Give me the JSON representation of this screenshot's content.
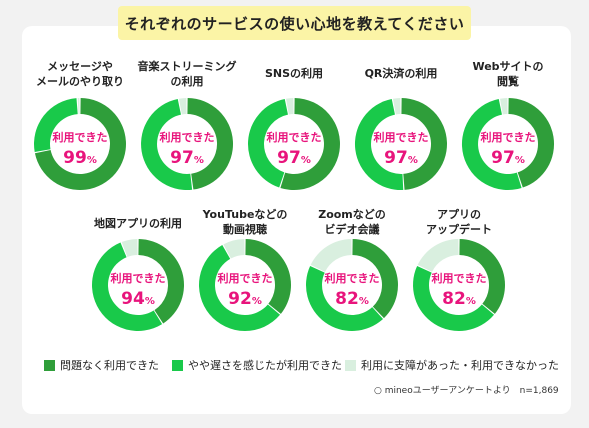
{
  "title": "それぞれのサービスの使い心地を教えてください",
  "center_label": "利用できた",
  "percent_unit": "%",
  "colors": {
    "no_problem": "#2f9e3a",
    "somewhat_slow": "#19c94a",
    "had_issues": "#d9efdf",
    "center_text": "#e8147c"
  },
  "legend": [
    {
      "key": "no_problem",
      "label": "問題なく利用できた"
    },
    {
      "key": "somewhat_slow",
      "label": "やや遅さを感じたが利用できた"
    },
    {
      "key": "had_issues",
      "label": "利用に支障があった・利用できなかった"
    }
  ],
  "source": "○ mineoユーザーアンケートより　n=1,869",
  "chart_data": {
    "type": "pie",
    "variant": "donut",
    "series_names": [
      "問題なく利用できた",
      "やや遅さを感じたが利用できた",
      "利用に支障があった・利用できなかった"
    ],
    "services": [
      {
        "label": [
          "メッセージや",
          "メールのやり取り"
        ],
        "usable_pct": 99,
        "values": [
          72,
          27,
          1
        ]
      },
      {
        "label": [
          "音楽ストリーミング",
          "の利用"
        ],
        "usable_pct": 97,
        "values": [
          48,
          49,
          3
        ]
      },
      {
        "label": [
          "SNSの利用"
        ],
        "usable_pct": 97,
        "values": [
          55,
          42,
          3
        ]
      },
      {
        "label": [
          "QR決済の利用"
        ],
        "usable_pct": 97,
        "values": [
          49,
          48,
          3
        ]
      },
      {
        "label": [
          "Webサイトの",
          "閲覧"
        ],
        "usable_pct": 97,
        "values": [
          45,
          52,
          3
        ]
      },
      {
        "label": [
          "地図アプリの利用"
        ],
        "usable_pct": 94,
        "values": [
          41,
          53,
          6
        ]
      },
      {
        "label": [
          "YouTubeなどの",
          "動画視聴"
        ],
        "usable_pct": 92,
        "values": [
          36,
          56,
          8
        ]
      },
      {
        "label": [
          "Zoomなどの",
          "ビデオ会議"
        ],
        "usable_pct": 82,
        "values": [
          38,
          44,
          18
        ]
      },
      {
        "label": [
          "アプリの",
          "アップデート"
        ],
        "usable_pct": 82,
        "values": [
          36,
          46,
          18
        ]
      }
    ]
  }
}
